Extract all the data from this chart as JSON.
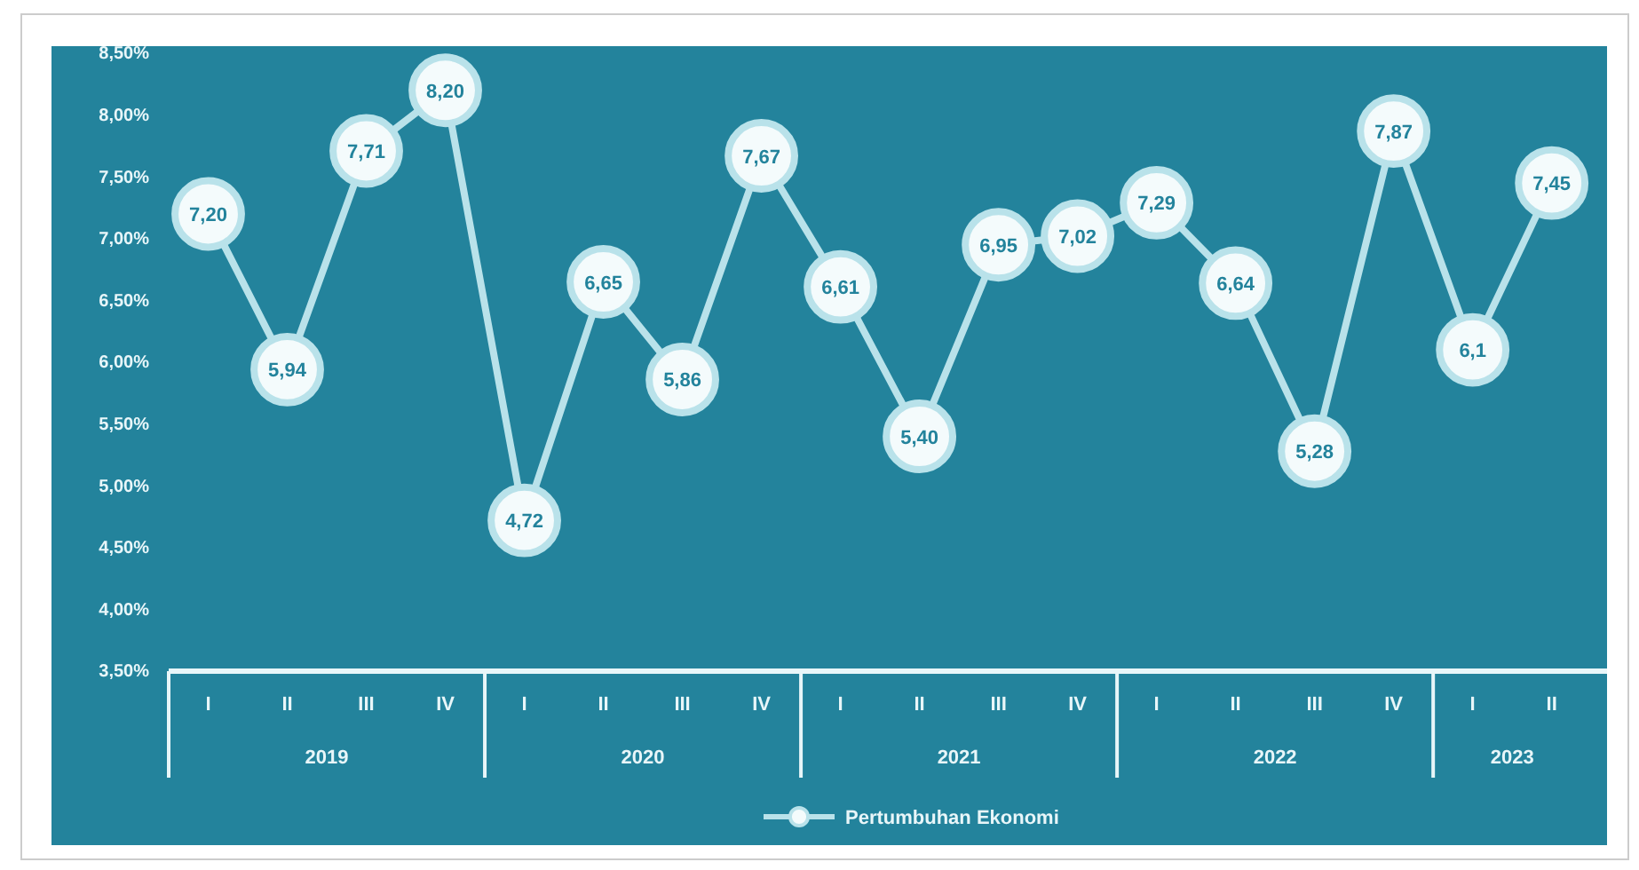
{
  "chart_data": {
    "type": "line",
    "categories": [
      "I",
      "II",
      "III",
      "IV",
      "I",
      "II",
      "III",
      "IV",
      "I",
      "II",
      "III",
      "IV",
      "I",
      "II",
      "III",
      "IV",
      "I",
      "II"
    ],
    "series": [
      {
        "name": "Pertumbuhan Ekonomi",
        "color": "#b9e2ea",
        "values": [
          7.2,
          5.94,
          7.71,
          8.2,
          4.72,
          6.65,
          5.86,
          7.67,
          6.61,
          5.4,
          6.95,
          7.02,
          7.29,
          6.64,
          5.28,
          7.87,
          6.1,
          7.45
        ]
      }
    ],
    "value_labels": [
      "7,20",
      "5,94",
      "7,71",
      "8,20",
      "4,72",
      "6,65",
      "5,86",
      "7,67",
      "6,61",
      "5,40",
      "6,95",
      "7,02",
      "7,29",
      "6,64",
      "5,28",
      "7,87",
      "6,1",
      "7,45"
    ],
    "ylim": [
      3.5,
      8.5
    ],
    "yticks": [
      {
        "value": 8.5,
        "label": "8,50%"
      },
      {
        "value": 8,
        "label": "8,00%"
      },
      {
        "value": 7.5,
        "label": "7,50%"
      },
      {
        "value": 7,
        "label": "7,00%"
      },
      {
        "value": 6.5,
        "label": "6,50%"
      },
      {
        "value": 6,
        "label": "6,00%"
      },
      {
        "value": 5.5,
        "label": "5,50%"
      },
      {
        "value": 5,
        "label": "5,00%"
      },
      {
        "value": 4.5,
        "label": "4,50%"
      },
      {
        "value": 4,
        "label": "4,00%"
      },
      {
        "value": 3.5,
        "label": "3,50%"
      }
    ],
    "annotations": [
      "2019",
      "2020",
      "2021",
      "2022",
      "2023"
    ],
    "marker": "circle",
    "legend": "bottom",
    "grid": false
  }
}
